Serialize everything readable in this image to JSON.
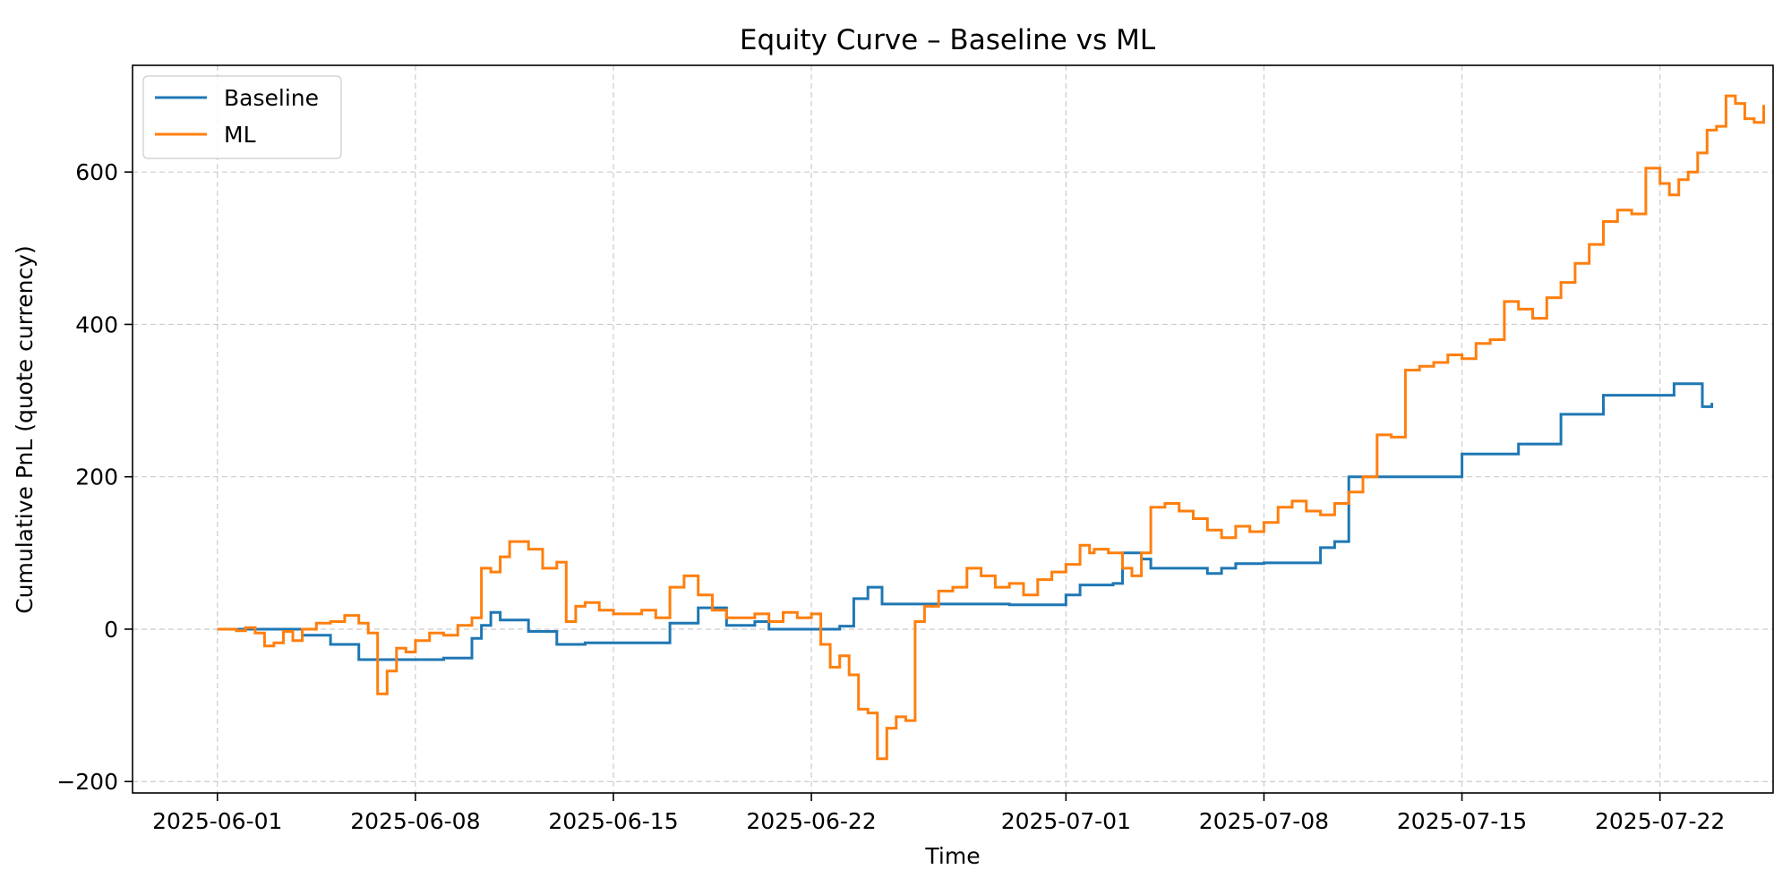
{
  "chart_data": {
    "type": "line",
    "title": "Equity Curve – Baseline vs ML",
    "xlabel": "Time",
    "ylabel": "Cumulative PnL (quote currency)",
    "xlim": [
      "2025-05-29",
      "2025-07-26"
    ],
    "ylim": [
      -215,
      740
    ],
    "x_ticks": [
      "2025-06-01",
      "2025-06-08",
      "2025-06-15",
      "2025-06-22",
      "2025-07-01",
      "2025-07-08",
      "2025-07-15",
      "2025-07-22"
    ],
    "y_ticks": [
      -200,
      0,
      200,
      400,
      600
    ],
    "y_tick_labels": [
      "−200",
      "0",
      "200",
      "400",
      "600"
    ],
    "grid": true,
    "legend_position": "top-left",
    "step": true,
    "series": [
      {
        "name": "Baseline",
        "color": "#1f77b4",
        "points": [
          [
            "2025-06-01",
            0
          ],
          [
            "2025-06-04",
            -8
          ],
          [
            "2025-06-05",
            -20
          ],
          [
            "2025-06-06",
            -40
          ],
          [
            "2025-06-09",
            -38
          ],
          [
            "2025-06-10",
            -12
          ],
          [
            "2025-06-10T08:00",
            5
          ],
          [
            "2025-06-10T16:00",
            22
          ],
          [
            "2025-06-11",
            12
          ],
          [
            "2025-06-12",
            -3
          ],
          [
            "2025-06-13",
            -20
          ],
          [
            "2025-06-14",
            -18
          ],
          [
            "2025-06-17",
            8
          ],
          [
            "2025-06-18",
            28
          ],
          [
            "2025-06-19",
            5
          ],
          [
            "2025-06-20",
            10
          ],
          [
            "2025-06-20T12:00",
            0
          ],
          [
            "2025-06-23",
            4
          ],
          [
            "2025-06-23T12:00",
            40
          ],
          [
            "2025-06-24",
            55
          ],
          [
            "2025-06-24T12:00",
            33
          ],
          [
            "2025-06-29",
            32
          ],
          [
            "2025-07-01",
            45
          ],
          [
            "2025-07-01T12:00",
            58
          ],
          [
            "2025-07-02T16:00",
            60
          ],
          [
            "2025-07-03",
            100
          ],
          [
            "2025-07-03T16:00",
            92
          ],
          [
            "2025-07-04",
            80
          ],
          [
            "2025-07-06",
            73
          ],
          [
            "2025-07-06T12:00",
            80
          ],
          [
            "2025-07-07",
            86
          ],
          [
            "2025-07-08",
            87
          ],
          [
            "2025-07-10",
            107
          ],
          [
            "2025-07-10T12:00",
            115
          ],
          [
            "2025-07-11",
            200
          ],
          [
            "2025-07-14",
            200
          ],
          [
            "2025-07-15",
            230
          ],
          [
            "2025-07-16",
            230
          ],
          [
            "2025-07-17",
            243
          ],
          [
            "2025-07-18",
            243
          ],
          [
            "2025-07-18T12:00",
            282
          ],
          [
            "2025-07-20",
            307
          ],
          [
            "2025-07-22",
            307
          ],
          [
            "2025-07-22T12:00",
            322
          ],
          [
            "2025-07-23T12:00",
            292
          ],
          [
            "2025-07-23T20:00",
            297
          ]
        ]
      },
      {
        "name": "ML",
        "color": "#ff7f0e",
        "points": [
          [
            "2025-06-01",
            0
          ],
          [
            "2025-06-01T16:00",
            -2
          ],
          [
            "2025-06-02",
            2
          ],
          [
            "2025-06-02T08:00",
            -5
          ],
          [
            "2025-06-02T16:00",
            -22
          ],
          [
            "2025-06-03",
            -18
          ],
          [
            "2025-06-03T08:00",
            -3
          ],
          [
            "2025-06-03T16:00",
            -15
          ],
          [
            "2025-06-04",
            0
          ],
          [
            "2025-06-04T12:00",
            8
          ],
          [
            "2025-06-05",
            10
          ],
          [
            "2025-06-05T12:00",
            18
          ],
          [
            "2025-06-06",
            8
          ],
          [
            "2025-06-06T08:00",
            -5
          ],
          [
            "2025-06-06T16:00",
            -85
          ],
          [
            "2025-06-07",
            -55
          ],
          [
            "2025-06-07T08:00",
            -25
          ],
          [
            "2025-06-07T16:00",
            -30
          ],
          [
            "2025-06-08",
            -15
          ],
          [
            "2025-06-08T12:00",
            -5
          ],
          [
            "2025-06-09",
            -8
          ],
          [
            "2025-06-09T12:00",
            5
          ],
          [
            "2025-06-10",
            15
          ],
          [
            "2025-06-10T08:00",
            80
          ],
          [
            "2025-06-10T16:00",
            75
          ],
          [
            "2025-06-11",
            95
          ],
          [
            "2025-06-11T08:00",
            115
          ],
          [
            "2025-06-12",
            105
          ],
          [
            "2025-06-12T12:00",
            80
          ],
          [
            "2025-06-13",
            88
          ],
          [
            "2025-06-13T08:00",
            10
          ],
          [
            "2025-06-13T16:00",
            30
          ],
          [
            "2025-06-14",
            35
          ],
          [
            "2025-06-14T12:00",
            25
          ],
          [
            "2025-06-15",
            20
          ],
          [
            "2025-06-16",
            25
          ],
          [
            "2025-06-16T12:00",
            15
          ],
          [
            "2025-06-17",
            55
          ],
          [
            "2025-06-17T12:00",
            70
          ],
          [
            "2025-06-18",
            45
          ],
          [
            "2025-06-18T12:00",
            25
          ],
          [
            "2025-06-19",
            15
          ],
          [
            "2025-06-20",
            20
          ],
          [
            "2025-06-20T12:00",
            10
          ],
          [
            "2025-06-21",
            22
          ],
          [
            "2025-06-21T12:00",
            15
          ],
          [
            "2025-06-22",
            20
          ],
          [
            "2025-06-22T08:00",
            -20
          ],
          [
            "2025-06-22T16:00",
            -50
          ],
          [
            "2025-06-23",
            -35
          ],
          [
            "2025-06-23T08:00",
            -60
          ],
          [
            "2025-06-23T16:00",
            -105
          ],
          [
            "2025-06-24",
            -110
          ],
          [
            "2025-06-24T08:00",
            -170
          ],
          [
            "2025-06-24T16:00",
            -130
          ],
          [
            "2025-06-25",
            -115
          ],
          [
            "2025-06-25T08:00",
            -120
          ],
          [
            "2025-06-25T16:00",
            10
          ],
          [
            "2025-06-26",
            30
          ],
          [
            "2025-06-26T12:00",
            50
          ],
          [
            "2025-06-27",
            55
          ],
          [
            "2025-06-27T12:00",
            80
          ],
          [
            "2025-06-28",
            70
          ],
          [
            "2025-06-28T12:00",
            55
          ],
          [
            "2025-06-29",
            60
          ],
          [
            "2025-06-29T12:00",
            45
          ],
          [
            "2025-06-30",
            65
          ],
          [
            "2025-06-30T12:00",
            75
          ],
          [
            "2025-07-01",
            85
          ],
          [
            "2025-07-01T12:00",
            110
          ],
          [
            "2025-07-01T20:00",
            100
          ],
          [
            "2025-07-02",
            105
          ],
          [
            "2025-07-02T12:00",
            100
          ],
          [
            "2025-07-03",
            80
          ],
          [
            "2025-07-03T08:00",
            70
          ],
          [
            "2025-07-03T16:00",
            100
          ],
          [
            "2025-07-04",
            160
          ],
          [
            "2025-07-04T12:00",
            165
          ],
          [
            "2025-07-05",
            155
          ],
          [
            "2025-07-05T12:00",
            145
          ],
          [
            "2025-07-06",
            130
          ],
          [
            "2025-07-06T12:00",
            120
          ],
          [
            "2025-07-07",
            135
          ],
          [
            "2025-07-07T12:00",
            128
          ],
          [
            "2025-07-08",
            140
          ],
          [
            "2025-07-08T12:00",
            160
          ],
          [
            "2025-07-09",
            168
          ],
          [
            "2025-07-09T12:00",
            155
          ],
          [
            "2025-07-10",
            150
          ],
          [
            "2025-07-10T12:00",
            165
          ],
          [
            "2025-07-11",
            180
          ],
          [
            "2025-07-11T12:00",
            200
          ],
          [
            "2025-07-12",
            255
          ],
          [
            "2025-07-12T12:00",
            252
          ],
          [
            "2025-07-13",
            340
          ],
          [
            "2025-07-13T12:00",
            345
          ],
          [
            "2025-07-14",
            350
          ],
          [
            "2025-07-14T12:00",
            360
          ],
          [
            "2025-07-15",
            355
          ],
          [
            "2025-07-15T12:00",
            375
          ],
          [
            "2025-07-16",
            380
          ],
          [
            "2025-07-16T12:00",
            430
          ],
          [
            "2025-07-17",
            420
          ],
          [
            "2025-07-17T12:00",
            408
          ],
          [
            "2025-07-18",
            435
          ],
          [
            "2025-07-18T12:00",
            455
          ],
          [
            "2025-07-19",
            480
          ],
          [
            "2025-07-19T12:00",
            505
          ],
          [
            "2025-07-20",
            535
          ],
          [
            "2025-07-20T12:00",
            550
          ],
          [
            "2025-07-21",
            545
          ],
          [
            "2025-07-21T12:00",
            605
          ],
          [
            "2025-07-22",
            585
          ],
          [
            "2025-07-22T08:00",
            570
          ],
          [
            "2025-07-22T16:00",
            590
          ],
          [
            "2025-07-23",
            600
          ],
          [
            "2025-07-23T08:00",
            625
          ],
          [
            "2025-07-23T16:00",
            655
          ],
          [
            "2025-07-24",
            660
          ],
          [
            "2025-07-24T08:00",
            700
          ],
          [
            "2025-07-24T16:00",
            690
          ],
          [
            "2025-07-25",
            670
          ],
          [
            "2025-07-25T08:00",
            665
          ],
          [
            "2025-07-25T16:00",
            688
          ]
        ]
      }
    ]
  }
}
